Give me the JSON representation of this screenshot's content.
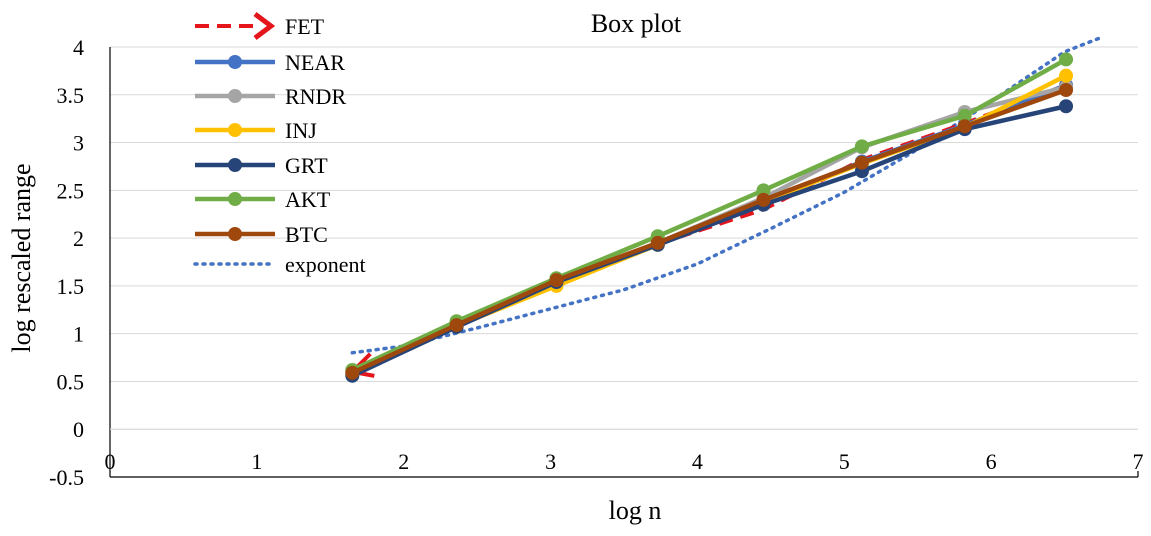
{
  "chart_data": {
    "type": "line",
    "title": "Box plot",
    "xlabel": "log n",
    "ylabel": "log rescaled range",
    "xlim": [
      0,
      7
    ],
    "ylim": [
      -0.5,
      4
    ],
    "x_ticks": [
      "0",
      "1",
      "2",
      "3",
      "4",
      "5",
      "6",
      "7"
    ],
    "y_ticks": [
      "-0.5",
      "0",
      "0.5",
      "1",
      "1.5",
      "2",
      "2.5",
      "3",
      "3.5",
      "4"
    ],
    "grid": true,
    "legend_position": "top-left",
    "x": [
      1.65,
      2.36,
      3.04,
      3.73,
      4.45,
      5.12,
      5.82,
      6.51
    ],
    "series": [
      {
        "name": "FET",
        "color": "#e4151b",
        "style": "dashed-arrow",
        "x": [
          1.65,
          2.36,
          3.04,
          3.73,
          4.45,
          5.12,
          5.82,
          6.51
        ],
        "values": [
          0.6,
          1.08,
          1.53,
          1.94,
          2.3,
          2.82,
          3.2,
          3.6
        ]
      },
      {
        "name": "NEAR",
        "color": "#4472c4",
        "style": "solid",
        "x": [
          1.65,
          2.36,
          3.04,
          3.73,
          4.45,
          5.12,
          5.82,
          6.51
        ],
        "values": [
          0.58,
          1.08,
          1.53,
          1.93,
          2.36,
          2.8,
          3.18,
          3.6
        ]
      },
      {
        "name": "RNDR",
        "color": "#a5a5a5",
        "style": "solid",
        "x": [
          1.65,
          2.36,
          3.04,
          3.73,
          4.45,
          5.12,
          5.82,
          6.51
        ],
        "values": [
          0.6,
          1.1,
          1.54,
          1.95,
          2.42,
          2.95,
          3.32,
          3.58
        ]
      },
      {
        "name": "INJ",
        "color": "#ffc000",
        "style": "solid",
        "x": [
          1.65,
          2.36,
          3.04,
          3.73,
          4.45,
          5.12,
          5.82,
          6.51
        ],
        "values": [
          0.6,
          1.08,
          1.5,
          1.93,
          2.38,
          2.78,
          3.16,
          3.7
        ]
      },
      {
        "name": "GRT",
        "color": "#264478",
        "style": "solid",
        "x": [
          1.65,
          2.36,
          3.04,
          3.73,
          4.45,
          5.12,
          5.82,
          6.51
        ],
        "values": [
          0.56,
          1.07,
          1.54,
          1.93,
          2.35,
          2.7,
          3.14,
          3.38
        ]
      },
      {
        "name": "AKT",
        "color": "#70ad47",
        "style": "solid",
        "x": [
          1.65,
          2.36,
          3.04,
          3.73,
          4.45,
          5.12,
          5.82,
          6.51
        ],
        "values": [
          0.62,
          1.13,
          1.58,
          2.02,
          2.5,
          2.96,
          3.28,
          3.87
        ]
      },
      {
        "name": "BTC",
        "color": "#9e480e",
        "style": "solid",
        "x": [
          1.65,
          2.36,
          3.04,
          3.73,
          4.45,
          5.12,
          5.82,
          6.51
        ],
        "values": [
          0.59,
          1.09,
          1.56,
          1.95,
          2.4,
          2.79,
          3.17,
          3.55
        ]
      },
      {
        "name": "exponent",
        "color": "#4472c4",
        "style": "dotted",
        "x": [
          1.65,
          2.0,
          2.5,
          3.0,
          3.5,
          4.0,
          4.5,
          5.0,
          5.5,
          6.0,
          6.5,
          6.75
        ],
        "values": [
          0.8,
          0.87,
          1.06,
          1.26,
          1.46,
          1.73,
          2.1,
          2.48,
          2.93,
          3.43,
          3.95,
          4.1
        ]
      }
    ]
  }
}
